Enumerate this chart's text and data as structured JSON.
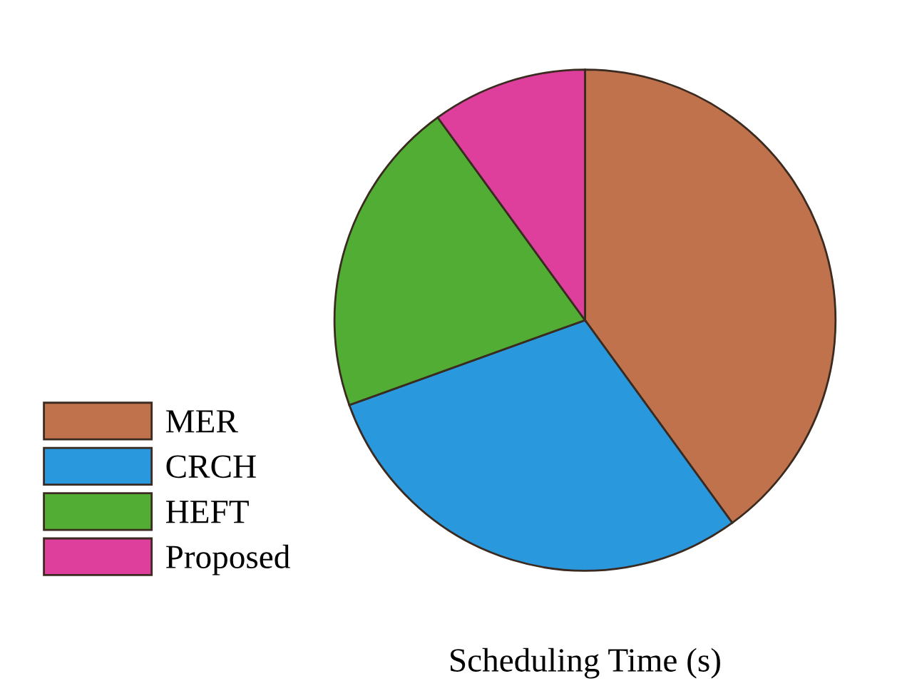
{
  "chart_data": {
    "type": "pie",
    "title": "Scheduling Time (s)",
    "categories": [
      "MER",
      "CRCH",
      "HEFT",
      "Proposed"
    ],
    "values": [
      40,
      29.5,
      20.5,
      10
    ],
    "colors": [
      "#c0724c",
      "#2a98dc",
      "#52ad34",
      "#de3e9c"
    ],
    "legend": "bottom left"
  }
}
